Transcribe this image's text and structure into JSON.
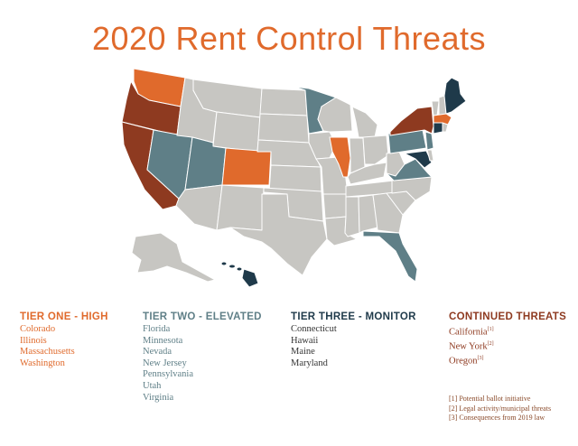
{
  "title": "2020 Rent Control Threats",
  "colors": {
    "tier_one": "#e06a2c",
    "tier_two": "#5f7f87",
    "tier_three": "#1f3a4a",
    "continued": "#8e3a20",
    "no_threat": "#c7c6c2",
    "border": "#ffffff"
  },
  "legend": [
    {
      "key": "tier_one",
      "title": "TIER ONE - HIGH",
      "color": "#e06a2c",
      "items": [
        {
          "name": "Colorado"
        },
        {
          "name": "Illinois"
        },
        {
          "name": "Massachusetts"
        },
        {
          "name": "Washington"
        }
      ]
    },
    {
      "key": "tier_two",
      "title": "TIER TWO - ELEVATED",
      "color": "#5f7f87",
      "items": [
        {
          "name": "Florida"
        },
        {
          "name": "Minnesota"
        },
        {
          "name": "Nevada"
        },
        {
          "name": "New Jersey"
        },
        {
          "name": "Pennsylvania"
        },
        {
          "name": "Utah"
        },
        {
          "name": "Virginia"
        }
      ]
    },
    {
      "key": "tier_three",
      "title": "TIER THREE - MONITOR",
      "color": "#1f3a4a",
      "items": [
        {
          "name": "Connecticut"
        },
        {
          "name": "Hawaii"
        },
        {
          "name": "Maine"
        },
        {
          "name": "Maryland"
        }
      ]
    },
    {
      "key": "continued",
      "title": "CONTINUED THREATS",
      "color": "#8e3a20",
      "items": [
        {
          "name": "California",
          "note": "[1]"
        },
        {
          "name": "New York",
          "note": "[2]"
        },
        {
          "name": "Oregon",
          "note": "[3]"
        }
      ]
    }
  ],
  "footnotes": [
    "[1] Potential ballot initiative",
    "[2] Legal activity/municipal threats",
    "[3] Consequences from 2019 law"
  ]
}
